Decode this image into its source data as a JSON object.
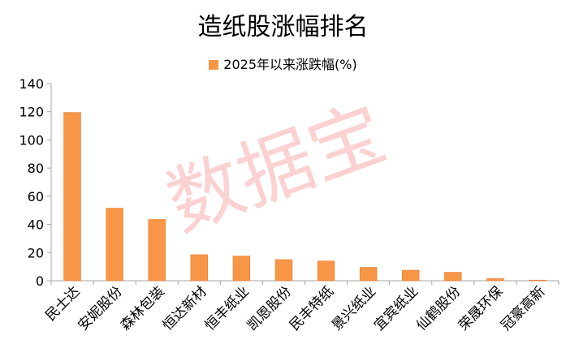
{
  "chart_data": {
    "type": "bar",
    "title": "造纸股涨幅排名",
    "categories": [
      "民士达",
      "安妮股份",
      "森林包装",
      "恒达新材",
      "恒丰纸业",
      "凯恩股份",
      "民丰特纸",
      "景兴纸业",
      "宜宾纸业",
      "仙鹤股份",
      "荣晟环保",
      "冠豪高新"
    ],
    "series": [
      {
        "name": "2025年以来涨跌幅(%)",
        "values": [
          119.5,
          51.5,
          43.5,
          18.5,
          17.5,
          15,
          14,
          9.5,
          7.5,
          6,
          1.5,
          0.3
        ]
      }
    ],
    "ylim": [
      0,
      140
    ],
    "yticks": [
      0,
      20,
      40,
      60,
      80,
      100,
      120,
      140
    ],
    "grid": false,
    "legend": "top",
    "bar_color": "#f79646"
  },
  "watermark": "数据宝"
}
